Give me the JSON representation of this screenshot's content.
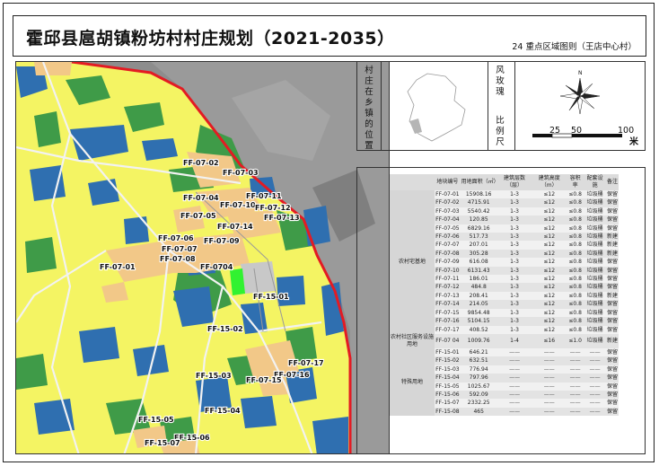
{
  "title": "霍邱县扈胡镇粉坊村村庄规划（2021-2035）",
  "subtitle": "24  重点区域图则（王店中心村）",
  "info": {
    "location_label": [
      "村",
      "庄",
      "在",
      "乡",
      "镇",
      "的",
      "位",
      "置"
    ],
    "rose_label": [
      "风",
      "玫",
      "瑰"
    ],
    "scale_label": [
      "比",
      "例",
      "尺"
    ],
    "north": "N",
    "scale_ticks": [
      "25",
      "50",
      "100"
    ],
    "scale_unit": "米"
  },
  "map": {
    "colors": {
      "residential": "#f4f463",
      "village": "#f2c888",
      "water": "#2f6fb0",
      "green": "#3f9b48",
      "road": "#f4f4f4",
      "boundary": "#e31b23",
      "highlight": "#31f231",
      "service": "#c8c8c8"
    },
    "labels": [
      "FF-07-02",
      "FF-07-03",
      "FF-07-04",
      "FF-07-10",
      "FF-07-11",
      "FF-07-12",
      "FF-07-13",
      "FF-07-05",
      "FF-07-14",
      "FF-07-06",
      "FF-07-09",
      "FF-07-07",
      "FF-07-08",
      "FF-07-01",
      "FF-0704",
      "FF-15-01",
      "FF-15-02",
      "FF-07-17",
      "FF-07-16",
      "FF-15-03",
      "FF-07-15",
      "FF-15-04",
      "FF-15-05",
      "FF-15-06",
      "FF-15-07"
    ]
  },
  "table": {
    "headers": [
      "",
      "地块编号",
      "用地面积（㎡）",
      "建筑层数（层）",
      "建筑高度（m）",
      "容积率",
      "配套设施",
      "备注"
    ],
    "groups": [
      {
        "category": "农村宅基地",
        "rows": [
          [
            "FF-07-01",
            "15908.16",
            "1-3",
            "≤12",
            "≤0.8",
            "垃圾桶",
            "保留"
          ],
          [
            "FF-07-02",
            "4715.91",
            "1-3",
            "≤12",
            "≤0.8",
            "垃圾桶",
            "保留"
          ],
          [
            "FF-07-03",
            "5540.42",
            "1-3",
            "≤12",
            "≤0.8",
            "垃圾桶",
            "保留"
          ],
          [
            "FF-07-04",
            "120.85",
            "1-3",
            "≤12",
            "≤0.8",
            "垃圾桶",
            "保留"
          ],
          [
            "FF-07-05",
            "6829.16",
            "1-3",
            "≤12",
            "≤0.8",
            "垃圾桶",
            "保留"
          ],
          [
            "FF-07-06",
            "517.73",
            "1-3",
            "≤12",
            "≤0.8",
            "垃圾桶",
            "新建"
          ],
          [
            "FF-07-07",
            "207.01",
            "1-3",
            "≤12",
            "≤0.8",
            "垃圾桶",
            "新建"
          ],
          [
            "FF-07-08",
            "305.28",
            "1-3",
            "≤12",
            "≤0.8",
            "垃圾桶",
            "新建"
          ],
          [
            "FF-07-09",
            "616.08",
            "1-3",
            "≤12",
            "≤0.8",
            "垃圾桶",
            "保留"
          ],
          [
            "FF-07-10",
            "6131.43",
            "1-3",
            "≤12",
            "≤0.8",
            "垃圾桶",
            "保留"
          ],
          [
            "FF-07-11",
            "186.01",
            "1-3",
            "≤12",
            "≤0.8",
            "垃圾桶",
            "保留"
          ],
          [
            "FF-07-12",
            "484.8",
            "1-3",
            "≤12",
            "≤0.8",
            "垃圾桶",
            "保留"
          ],
          [
            "FF-07-13",
            "208.41",
            "1-3",
            "≤12",
            "≤0.8",
            "垃圾桶",
            "新建"
          ],
          [
            "FF-07-14",
            "214.05",
            "1-3",
            "≤12",
            "≤0.8",
            "垃圾桶",
            "保留"
          ],
          [
            "FF-07-15",
            "9854.48",
            "1-3",
            "≤12",
            "≤0.8",
            "垃圾桶",
            "保留"
          ],
          [
            "FF-07-16",
            "5104.15",
            "1-3",
            "≤12",
            "≤0.8",
            "垃圾桶",
            "保留"
          ],
          [
            "FF-07-17",
            "408.52",
            "1-3",
            "≤12",
            "≤0.8",
            "垃圾桶",
            "保留"
          ]
        ]
      },
      {
        "category": "农村社区服务设施用地",
        "rows": [
          [
            "FF-07 04",
            "1009.76",
            "1-4",
            "≤16",
            "≤1.0",
            "垃圾桶",
            "新建"
          ]
        ]
      },
      {
        "category": "特殊用地",
        "rows": [
          [
            "FF-15-01",
            "646.21",
            "——",
            "——",
            "——",
            "——",
            "保留"
          ],
          [
            "FF-15-02",
            "632.51",
            "——",
            "——",
            "——",
            "——",
            "保留"
          ],
          [
            "FF-15-03",
            "776.94",
            "——",
            "——",
            "——",
            "——",
            "保留"
          ],
          [
            "FF-15-04",
            "797.96",
            "——",
            "——",
            "——",
            "——",
            "保留"
          ],
          [
            "FF-15-05",
            "1025.67",
            "——",
            "——",
            "——",
            "——",
            "保留"
          ],
          [
            "FF-15-06",
            "592.09",
            "——",
            "——",
            "——",
            "——",
            "保留"
          ],
          [
            "FF-15-07",
            "2332.25",
            "——",
            "——",
            "——",
            "——",
            "保留"
          ],
          [
            "FF-15-08",
            "465",
            "——",
            "——",
            "——",
            "——",
            "保留"
          ]
        ]
      }
    ]
  }
}
